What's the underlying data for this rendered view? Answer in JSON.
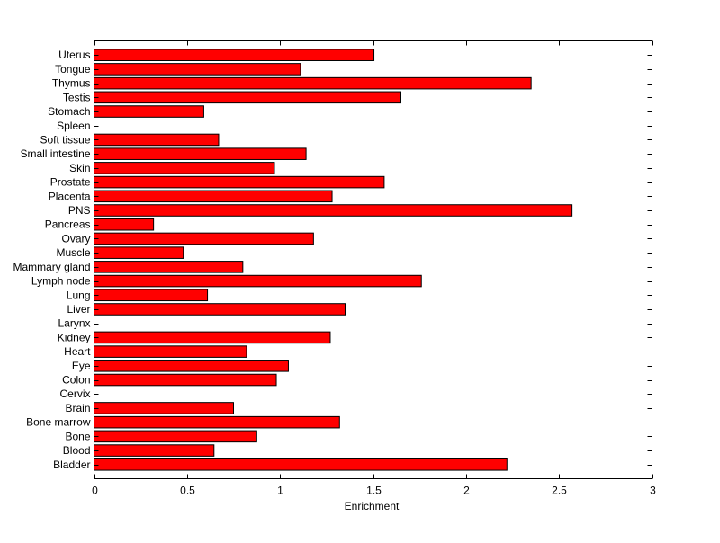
{
  "chart_data": {
    "type": "bar",
    "orientation": "horizontal",
    "title": "",
    "xlabel": "Enrichment",
    "ylabel": "",
    "xlim": [
      0,
      3
    ],
    "xticks": [
      "0",
      "0.5",
      "1",
      "1.5",
      "2",
      "2.5",
      "3"
    ],
    "grid": false,
    "bar_color": "#ff0000",
    "categories": [
      "Bladder",
      "Blood",
      "Bone",
      "Bone marrow",
      "Brain",
      "Cervix",
      "Colon",
      "Eye",
      "Heart",
      "Kidney",
      "Larynx",
      "Liver",
      "Lung",
      "Lymph node",
      "Mammary gland",
      "Muscle",
      "Ovary",
      "Pancreas",
      "PNS",
      "Placenta",
      "Prostate",
      "Skin",
      "Small intestine",
      "Soft tissue",
      "Spleen",
      "Stomach",
      "Testis",
      "Thymus",
      "Tongue",
      "Uterus"
    ],
    "values": [
      2.22,
      0.645,
      0.875,
      1.32,
      0.75,
      0,
      0.98,
      1.045,
      0.82,
      1.27,
      0,
      1.35,
      0.61,
      1.76,
      0.8,
      0.48,
      1.18,
      0.32,
      2.57,
      1.28,
      1.56,
      0.97,
      1.14,
      0.67,
      0,
      0.59,
      1.65,
      2.35,
      1.11,
      1.505
    ]
  }
}
